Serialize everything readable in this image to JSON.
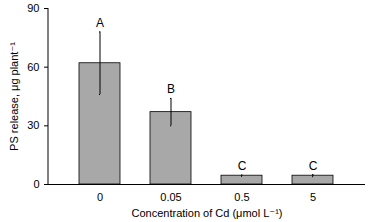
{
  "chart_data": {
    "type": "bar",
    "categories": [
      "0",
      "0.05",
      "0.5",
      "5"
    ],
    "values": [
      62,
      37,
      4.5,
      4.5
    ],
    "errors": [
      16,
      7,
      0.3,
      0.5
    ],
    "annotations": [
      "A",
      "B",
      "C",
      "C"
    ],
    "color": "#a8a8a8",
    "xlabel": "Concentration of Cd (μmol L⁻¹)",
    "ylabel": "PS release, μg plant⁻¹",
    "ylim": [
      0,
      90
    ],
    "yticks": [
      0,
      30,
      60,
      90
    ],
    "grid": false
  }
}
